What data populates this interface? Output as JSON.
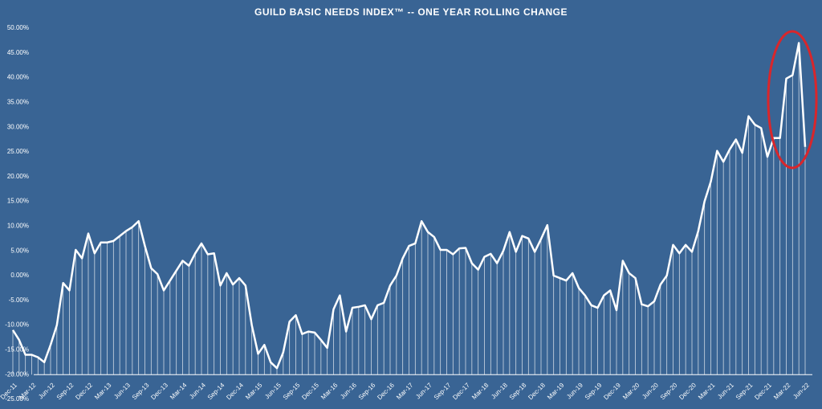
{
  "chart_data": {
    "type": "line",
    "title": "GUILD BASIC NEEDS INDEX™ -- ONE YEAR ROLLING CHANGE",
    "categories": [
      "Dec-11",
      null,
      null,
      "Mar-12",
      null,
      null,
      "Jun-12",
      null,
      null,
      "Sep-12",
      null,
      null,
      "Dec-12",
      null,
      null,
      "Mar-13",
      null,
      null,
      "Jun-13",
      null,
      null,
      "Sep-13",
      null,
      null,
      "Dec-13",
      null,
      null,
      "Mar-14",
      null,
      null,
      "Jun-14",
      null,
      null,
      "Sep-14",
      null,
      null,
      "Dec-14",
      null,
      null,
      "Mar-15",
      null,
      null,
      "Jun-15",
      null,
      null,
      "Sep-15",
      null,
      null,
      "Dec-15",
      null,
      null,
      "Mar-16",
      null,
      null,
      "Jun-16",
      null,
      null,
      "Sep-16",
      null,
      null,
      "Dec-16",
      null,
      null,
      "Mar-17",
      null,
      null,
      "Jun-17",
      null,
      null,
      "Sep-17",
      null,
      null,
      "Dec-17",
      null,
      null,
      "Mar-18",
      null,
      null,
      "Jun-18",
      null,
      null,
      "Sep-18",
      null,
      null,
      "Dec-18",
      null,
      null,
      "Mar-19",
      null,
      null,
      "Jun-19",
      null,
      null,
      "Sep-19",
      null,
      null,
      "Dec-19",
      null,
      null,
      "Mar-20",
      null,
      null,
      "Jun-20",
      null,
      null,
      "Sep-20",
      null,
      null,
      "Dec-20",
      null,
      null,
      "Mar-21",
      null,
      null,
      "Jun-21",
      null,
      null,
      "Sep-21",
      null,
      null,
      "Dec-21",
      null,
      null,
      "Mar-22",
      null,
      null,
      "Jun-22"
    ],
    "values": [
      -11,
      -13,
      -16,
      -16,
      -16.5,
      -17.5,
      -14,
      -10,
      -1.5,
      -3,
      5.2,
      3.5,
      8.5,
      4.5,
      6.7,
      6.7,
      7,
      8,
      9,
      9.8,
      11,
      6,
      1.5,
      0.3,
      -3,
      -1,
      1,
      3,
      2,
      4.5,
      6.5,
      4.3,
      4.5,
      -2,
      0.5,
      -1.8,
      -0.5,
      -2,
      -10,
      -15.8,
      -14,
      -17.5,
      -18.7,
      -15.5,
      -9.3,
      -8,
      -11.8,
      -11.3,
      -11.5,
      -13,
      -14.6,
      -6.8,
      -4,
      -11.3,
      -6.5,
      -6.3,
      -6,
      -8.8,
      -6,
      -5.5,
      -2,
      0,
      3.5,
      6,
      6.5,
      11,
      8.8,
      7.8,
      5.2,
      5.2,
      4.3,
      5.5,
      5.6,
      2.5,
      1.2,
      3.8,
      4.4,
      2.5,
      5,
      8.8,
      4.8,
      8,
      7.5,
      4.8,
      7.4,
      10.2,
      0,
      -0.5,
      -1,
      0.5,
      -2.5,
      -4,
      -6,
      -6.5,
      -4,
      -3,
      -7,
      3,
      0.5,
      -0.5,
      -5.8,
      -6.2,
      -5.2,
      -1.8,
      0,
      6.2,
      4.5,
      6.2,
      4.8,
      9,
      15,
      19,
      25.2,
      23,
      25.5,
      27.5,
      24.8,
      32.2,
      30.5,
      29.8,
      24,
      27.8,
      27.8,
      39.8,
      40.5,
      47,
      26
    ],
    "color": "#ffffff",
    "ylim": [
      -25,
      50
    ],
    "yticks": [
      {
        "value": -25,
        "label": "-25.00%"
      },
      {
        "value": -20,
        "label": "-20.00%"
      },
      {
        "value": -15,
        "label": "-15.00%"
      },
      {
        "value": -10,
        "label": "-10.00%"
      },
      {
        "value": -5,
        "label": "-5.00%"
      },
      {
        "value": 0,
        "label": "0.00%"
      },
      {
        "value": 5,
        "label": "5.00%"
      },
      {
        "value": 10,
        "label": "10.00%"
      },
      {
        "value": 15,
        "label": "15.00%"
      },
      {
        "value": 20,
        "label": "20.00%"
      },
      {
        "value": 25,
        "label": "25.00%"
      },
      {
        "value": 30,
        "label": "30.00%"
      },
      {
        "value": 35,
        "label": "35.00%"
      },
      {
        "value": 40,
        "label": "40.00%"
      },
      {
        "value": 45,
        "label": "45.00%"
      },
      {
        "value": 50,
        "label": "50.00%"
      }
    ],
    "grid": false
  }
}
